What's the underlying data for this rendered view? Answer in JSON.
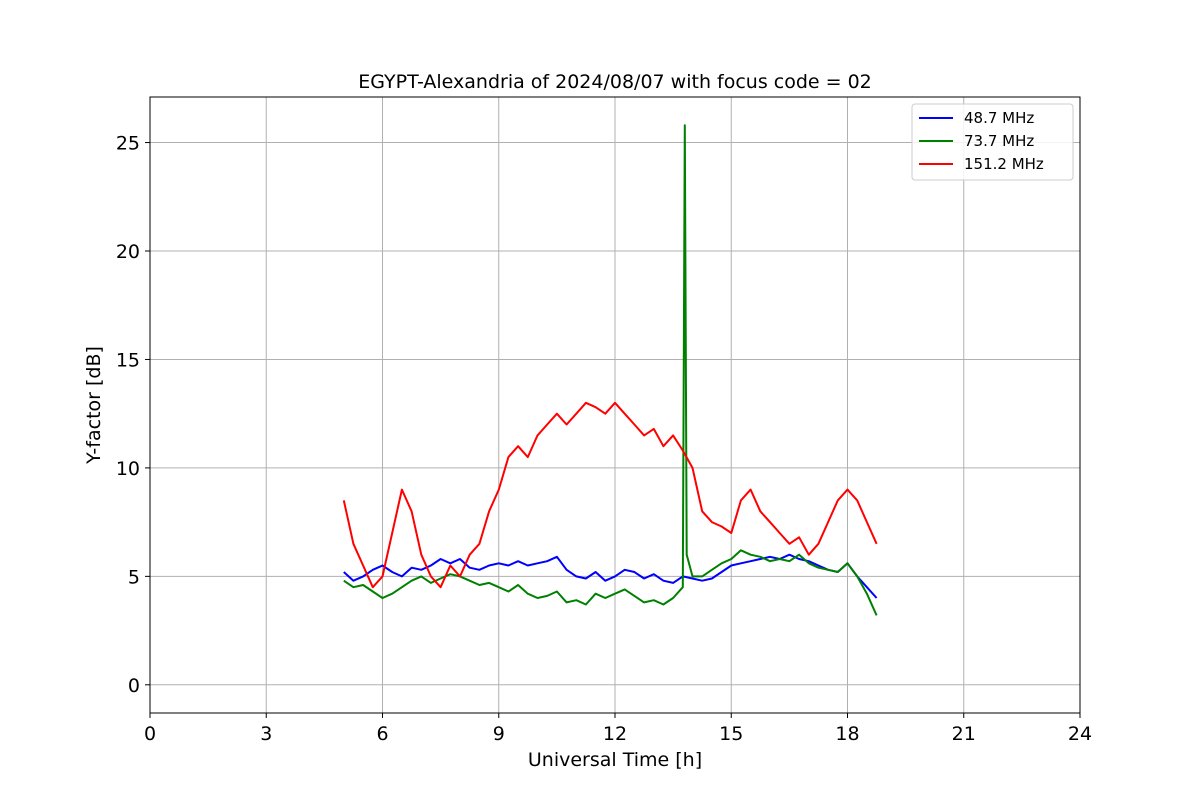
{
  "chart_data": {
    "type": "line",
    "title": "EGYPT-Alexandria of 2024/08/07 with focus code = 02",
    "xlabel": "Universal Time [h]",
    "ylabel": "Y-factor [dB]",
    "xlim": [
      0,
      24
    ],
    "ylim": [
      -1.3,
      27.1
    ],
    "xticks": [
      0,
      3,
      6,
      9,
      12,
      15,
      18,
      21,
      24
    ],
    "yticks": [
      0,
      5,
      10,
      15,
      20,
      25
    ],
    "grid": true,
    "legend_position": "top-right",
    "series": [
      {
        "name": "  48.7 MHz",
        "color": "#0000ff",
        "x": [
          5.0,
          5.25,
          5.5,
          5.75,
          6.0,
          6.25,
          6.5,
          6.75,
          7.0,
          7.25,
          7.5,
          7.75,
          8.0,
          8.25,
          8.5,
          8.75,
          9.0,
          9.25,
          9.5,
          9.75,
          10.0,
          10.25,
          10.5,
          10.75,
          11.0,
          11.25,
          11.5,
          11.75,
          12.0,
          12.25,
          12.5,
          12.75,
          13.0,
          13.25,
          13.5,
          13.75,
          14.0,
          14.25,
          14.5,
          14.75,
          15.0,
          15.25,
          15.5,
          15.75,
          16.0,
          16.25,
          16.5,
          16.75,
          17.0,
          17.25,
          17.5,
          17.75,
          18.0,
          18.25,
          18.5,
          18.75
        ],
        "y": [
          5.2,
          4.8,
          5.0,
          5.3,
          5.5,
          5.2,
          5.0,
          5.4,
          5.3,
          5.5,
          5.8,
          5.6,
          5.8,
          5.4,
          5.3,
          5.5,
          5.6,
          5.5,
          5.7,
          5.5,
          5.6,
          5.7,
          5.9,
          5.3,
          5.0,
          4.9,
          5.2,
          4.8,
          5.0,
          5.3,
          5.2,
          4.9,
          5.1,
          4.8,
          4.7,
          5.0,
          4.9,
          4.8,
          4.9,
          5.2,
          5.5,
          5.6,
          5.7,
          5.8,
          5.9,
          5.8,
          6.0,
          5.8,
          5.7,
          5.5,
          5.3,
          5.2,
          5.6,
          5.0,
          4.5,
          4.0
        ]
      },
      {
        "name": "  73.7 MHz",
        "color": "#008000",
        "x": [
          5.0,
          5.25,
          5.5,
          5.75,
          6.0,
          6.25,
          6.5,
          6.75,
          7.0,
          7.25,
          7.5,
          7.75,
          8.0,
          8.25,
          8.5,
          8.75,
          9.0,
          9.25,
          9.5,
          9.75,
          10.0,
          10.25,
          10.5,
          10.75,
          11.0,
          11.25,
          11.5,
          11.75,
          12.0,
          12.25,
          12.5,
          12.75,
          13.0,
          13.25,
          13.5,
          13.75,
          13.8,
          13.85,
          14.0,
          14.25,
          14.5,
          14.75,
          15.0,
          15.25,
          15.5,
          15.75,
          16.0,
          16.25,
          16.5,
          16.75,
          17.0,
          17.25,
          17.5,
          17.75,
          18.0,
          18.25,
          18.5,
          18.75
        ],
        "y": [
          4.8,
          4.5,
          4.6,
          4.3,
          4.0,
          4.2,
          4.5,
          4.8,
          5.0,
          4.7,
          4.9,
          5.1,
          5.0,
          4.8,
          4.6,
          4.7,
          4.5,
          4.3,
          4.6,
          4.2,
          4.0,
          4.1,
          4.3,
          3.8,
          3.9,
          3.7,
          4.2,
          4.0,
          4.2,
          4.4,
          4.1,
          3.8,
          3.9,
          3.7,
          4.0,
          4.5,
          25.8,
          6.0,
          5.0,
          5.0,
          5.3,
          5.6,
          5.8,
          6.2,
          6.0,
          5.9,
          5.7,
          5.8,
          5.7,
          6.0,
          5.6,
          5.4,
          5.3,
          5.2,
          5.6,
          5.0,
          4.2,
          3.2
        ]
      },
      {
        "name": " 151.2 MHz",
        "color": "#ff0000",
        "x": [
          5.0,
          5.25,
          5.5,
          5.75,
          6.0,
          6.25,
          6.5,
          6.75,
          7.0,
          7.25,
          7.5,
          7.75,
          8.0,
          8.25,
          8.5,
          8.75,
          9.0,
          9.25,
          9.5,
          9.75,
          10.0,
          10.25,
          10.5,
          10.75,
          11.0,
          11.25,
          11.5,
          11.75,
          12.0,
          12.25,
          12.5,
          12.75,
          13.0,
          13.25,
          13.5,
          13.75,
          14.0,
          14.25,
          14.5,
          14.75,
          15.0,
          15.25,
          15.5,
          15.75,
          16.0,
          16.25,
          16.5,
          16.75,
          17.0,
          17.25,
          17.5,
          17.75,
          18.0,
          18.25,
          18.5,
          18.75
        ],
        "y": [
          8.5,
          6.5,
          5.5,
          4.5,
          5.0,
          7.0,
          9.0,
          8.0,
          6.0,
          5.0,
          4.5,
          5.5,
          5.0,
          6.0,
          6.5,
          8.0,
          9.0,
          10.5,
          11.0,
          10.5,
          11.5,
          12.0,
          12.5,
          12.0,
          12.5,
          13.0,
          12.8,
          12.5,
          13.0,
          12.5,
          12.0,
          11.5,
          11.8,
          11.0,
          11.5,
          10.8,
          10.0,
          8.0,
          7.5,
          7.3,
          7.0,
          8.5,
          9.0,
          8.0,
          7.5,
          7.0,
          6.5,
          6.8,
          6.0,
          6.5,
          7.5,
          8.5,
          9.0,
          8.5,
          7.5,
          6.5
        ]
      }
    ]
  }
}
